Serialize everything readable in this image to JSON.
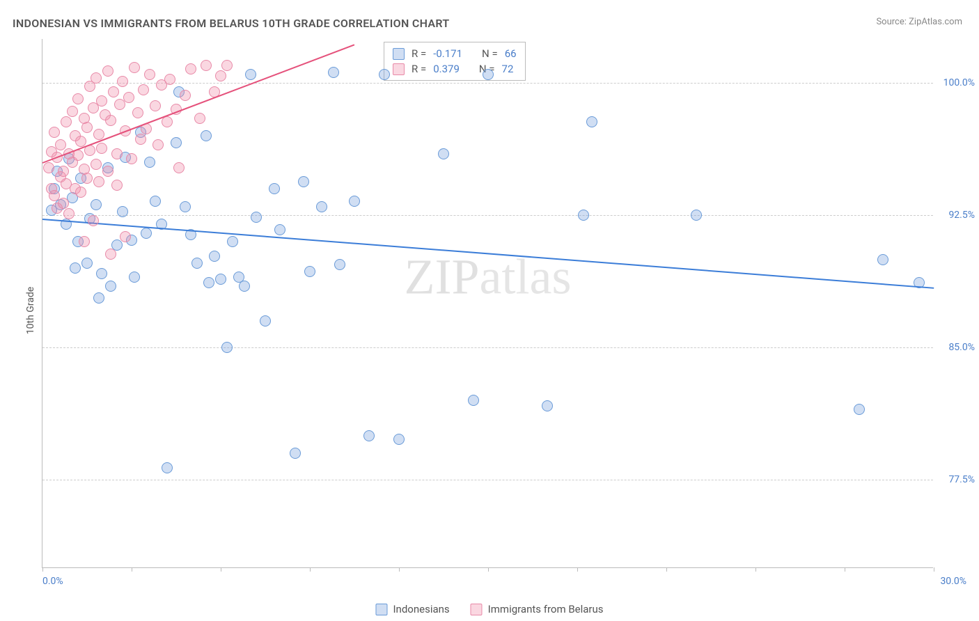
{
  "title": "INDONESIAN VS IMMIGRANTS FROM BELARUS 10TH GRADE CORRELATION CHART",
  "source_label": "Source:",
  "source_name": "ZipAtlas.com",
  "y_axis_label": "10th Grade",
  "watermark_a": "ZIP",
  "watermark_b": "atlas",
  "chart": {
    "type": "scatter",
    "xlim": [
      0,
      30
    ],
    "ylim": [
      72.5,
      102.5
    ],
    "x_range_labels": [
      "0.0%",
      "30.0%"
    ],
    "y_ticks": [
      77.5,
      85.0,
      92.5,
      100.0
    ],
    "y_tick_labels": [
      "77.5%",
      "85.0%",
      "92.5%",
      "100.0%"
    ],
    "x_tick_positions": [
      0,
      3,
      6,
      9,
      12,
      15,
      18,
      21,
      24,
      27,
      30
    ],
    "grid_color": "#cccccc",
    "marker_radius": 8,
    "series": [
      {
        "name": "Indonesians",
        "key": "indonesians",
        "color_fill": "rgba(120,160,220,0.35)",
        "color_stroke": "#6a9bd8",
        "trend_color": "#3b7dd8",
        "R": "-0.171",
        "N": "66",
        "trend": {
          "x1": 0,
          "y1": 92.3,
          "x2": 30,
          "y2": 88.4
        },
        "points": [
          [
            0.3,
            92.8
          ],
          [
            0.4,
            94.0
          ],
          [
            0.5,
            95.0
          ],
          [
            0.6,
            93.1
          ],
          [
            0.8,
            92.0
          ],
          [
            0.9,
            95.7
          ],
          [
            1.0,
            93.5
          ],
          [
            1.1,
            89.5
          ],
          [
            1.2,
            91.0
          ],
          [
            1.3,
            94.6
          ],
          [
            1.5,
            89.8
          ],
          [
            1.6,
            92.3
          ],
          [
            1.8,
            93.1
          ],
          [
            1.9,
            87.8
          ],
          [
            2.0,
            89.2
          ],
          [
            2.2,
            95.2
          ],
          [
            2.3,
            88.5
          ],
          [
            2.5,
            90.8
          ],
          [
            2.7,
            92.7
          ],
          [
            2.8,
            95.8
          ],
          [
            3.0,
            91.1
          ],
          [
            3.1,
            89.0
          ],
          [
            3.3,
            97.2
          ],
          [
            3.5,
            91.5
          ],
          [
            3.6,
            95.5
          ],
          [
            3.8,
            93.3
          ],
          [
            4.0,
            92.0
          ],
          [
            4.2,
            78.2
          ],
          [
            4.5,
            96.6
          ],
          [
            4.6,
            99.5
          ],
          [
            4.8,
            93.0
          ],
          [
            5.0,
            91.4
          ],
          [
            5.2,
            89.8
          ],
          [
            5.5,
            97.0
          ],
          [
            5.6,
            88.7
          ],
          [
            5.8,
            90.2
          ],
          [
            6.0,
            88.9
          ],
          [
            6.2,
            85.0
          ],
          [
            6.4,
            91.0
          ],
          [
            6.6,
            89.0
          ],
          [
            6.8,
            88.5
          ],
          [
            7.0,
            100.5
          ],
          [
            7.2,
            92.4
          ],
          [
            7.5,
            86.5
          ],
          [
            7.8,
            94.0
          ],
          [
            8.0,
            91.7
          ],
          [
            8.5,
            79.0
          ],
          [
            8.8,
            94.4
          ],
          [
            9.0,
            89.3
          ],
          [
            9.4,
            93.0
          ],
          [
            9.8,
            100.6
          ],
          [
            10.0,
            89.7
          ],
          [
            10.5,
            93.3
          ],
          [
            11.0,
            80.0
          ],
          [
            11.5,
            100.5
          ],
          [
            12.0,
            79.8
          ],
          [
            13.5,
            96.0
          ],
          [
            14.5,
            82.0
          ],
          [
            15.0,
            100.5
          ],
          [
            17.0,
            81.7
          ],
          [
            18.2,
            92.5
          ],
          [
            18.5,
            97.8
          ],
          [
            22.0,
            92.5
          ],
          [
            27.5,
            81.5
          ],
          [
            28.3,
            90.0
          ],
          [
            29.5,
            88.7
          ]
        ]
      },
      {
        "name": "Immigrants from Belarus",
        "key": "belarus",
        "color_fill": "rgba(240,140,170,0.35)",
        "color_stroke": "#e88aa8",
        "trend_color": "#e5517b",
        "R": "0.379",
        "N": "72",
        "trend": {
          "x1": 0,
          "y1": 95.5,
          "x2": 10.5,
          "y2": 102.2
        },
        "points": [
          [
            0.2,
            95.2
          ],
          [
            0.3,
            94.0
          ],
          [
            0.3,
            96.1
          ],
          [
            0.4,
            93.6
          ],
          [
            0.4,
            97.2
          ],
          [
            0.5,
            95.8
          ],
          [
            0.5,
            92.9
          ],
          [
            0.6,
            94.7
          ],
          [
            0.6,
            96.5
          ],
          [
            0.7,
            95.0
          ],
          [
            0.7,
            93.2
          ],
          [
            0.8,
            97.8
          ],
          [
            0.8,
            94.3
          ],
          [
            0.9,
            96.0
          ],
          [
            0.9,
            92.6
          ],
          [
            1.0,
            98.4
          ],
          [
            1.0,
            95.5
          ],
          [
            1.1,
            94.0
          ],
          [
            1.1,
            97.0
          ],
          [
            1.2,
            95.9
          ],
          [
            1.2,
            99.1
          ],
          [
            1.3,
            93.8
          ],
          [
            1.3,
            96.7
          ],
          [
            1.4,
            98.0
          ],
          [
            1.4,
            91.0
          ],
          [
            1.4,
            95.1
          ],
          [
            1.5,
            97.5
          ],
          [
            1.5,
            94.6
          ],
          [
            1.6,
            99.8
          ],
          [
            1.6,
            96.2
          ],
          [
            1.7,
            92.2
          ],
          [
            1.7,
            98.6
          ],
          [
            1.8,
            95.4
          ],
          [
            1.8,
            100.3
          ],
          [
            1.9,
            97.1
          ],
          [
            1.9,
            94.4
          ],
          [
            2.0,
            99.0
          ],
          [
            2.0,
            96.3
          ],
          [
            2.1,
            98.2
          ],
          [
            2.2,
            95.0
          ],
          [
            2.2,
            100.7
          ],
          [
            2.3,
            90.3
          ],
          [
            2.3,
            97.9
          ],
          [
            2.4,
            99.5
          ],
          [
            2.5,
            96.0
          ],
          [
            2.5,
            94.2
          ],
          [
            2.6,
            98.8
          ],
          [
            2.7,
            100.1
          ],
          [
            2.8,
            91.3
          ],
          [
            2.8,
            97.3
          ],
          [
            2.9,
            99.2
          ],
          [
            3.0,
            95.7
          ],
          [
            3.1,
            100.9
          ],
          [
            3.2,
            98.3
          ],
          [
            3.3,
            96.8
          ],
          [
            3.4,
            99.6
          ],
          [
            3.5,
            97.4
          ],
          [
            3.6,
            100.5
          ],
          [
            3.8,
            98.7
          ],
          [
            3.9,
            96.5
          ],
          [
            4.0,
            99.9
          ],
          [
            4.2,
            97.8
          ],
          [
            4.3,
            100.2
          ],
          [
            4.5,
            98.5
          ],
          [
            4.6,
            95.2
          ],
          [
            4.8,
            99.3
          ],
          [
            5.0,
            100.8
          ],
          [
            5.3,
            98.0
          ],
          [
            5.5,
            101.0
          ],
          [
            5.8,
            99.5
          ],
          [
            6.0,
            100.4
          ],
          [
            6.2,
            101.0
          ]
        ]
      }
    ]
  },
  "legend": {
    "indonesians": "Indonesians",
    "belarus": "Immigrants from Belarus"
  },
  "stats_labels": {
    "R": "R =",
    "N": "N ="
  }
}
